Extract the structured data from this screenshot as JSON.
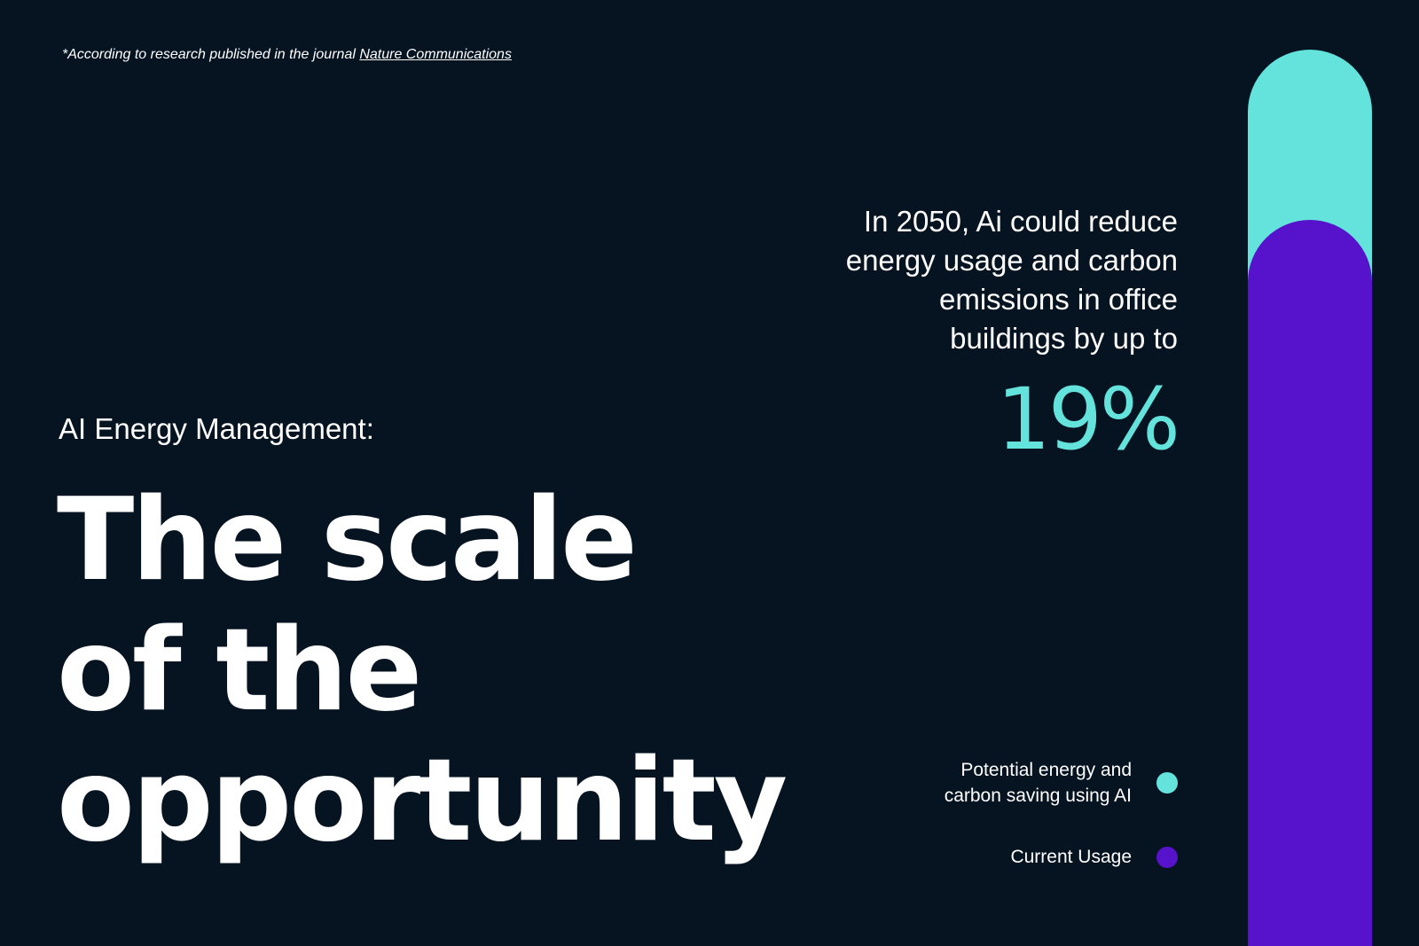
{
  "footnote": {
    "prefix": "*According to research published in the journal ",
    "link_text": "Nature Communications"
  },
  "subtitle": "AI Energy Management:",
  "headline": {
    "line1": "The scale",
    "line2": "of the",
    "line3": "opportunity"
  },
  "stat": {
    "text_lines": [
      "In 2050, Ai could reduce",
      "energy usage and carbon",
      "emissions in office",
      "buildings by up to "
    ],
    "value": "19%",
    "value_color": "#63e3dc"
  },
  "legend": [
    {
      "label_lines": [
        "Potential energy and",
        "carbon saving using AI "
      ],
      "color": "#63e3dc"
    },
    {
      "label_lines": [
        "Current Usage"
      ],
      "color": "#5712cc"
    }
  ],
  "bar": {
    "saving_percent": 19,
    "saving_color": "#63e3dc",
    "usage_color": "#5712cc"
  }
}
